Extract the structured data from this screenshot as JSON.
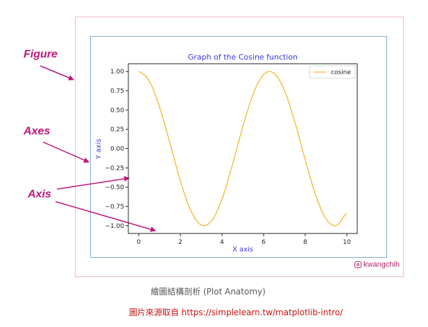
{
  "callouts": {
    "figure": "Figure",
    "axes": "Axes",
    "axis": "Axis"
  },
  "credit": {
    "icon": "instagram-icon",
    "text": "kwangchih"
  },
  "caption": "繪圖結構剖析 (Plot Anatomy)",
  "source": {
    "prefix": "圖片來源取自 ",
    "url": "https://simplelearn.tw/matplotlib-intro/"
  },
  "colors": {
    "callout": "#c0157a",
    "figure_frame": "#f2b7c4",
    "axes_frame": "#7fa9d6",
    "line": "#f5b62a",
    "labels": "#3a3adf",
    "source": "#cc1111"
  },
  "chart_data": {
    "type": "line",
    "title": "Graph of the Cosine function",
    "xlabel": "X axis",
    "ylabel": "Y axis",
    "xlim": [
      -0.5,
      10.5
    ],
    "ylim": [
      -1.1,
      1.1
    ],
    "xticks": [
      0,
      2,
      4,
      6,
      8,
      10
    ],
    "yticks": [
      1.0,
      0.75,
      0.5,
      0.25,
      0.0,
      -0.25,
      -0.5,
      -0.75,
      -1.0
    ],
    "ytick_labels": [
      "1.00",
      "0.75",
      "0.50",
      "0.25",
      "0.00",
      "−0.25",
      "−0.50",
      "−0.75",
      "−1.00"
    ],
    "legend_position": "top-right",
    "grid": false,
    "series": [
      {
        "name": "cosine",
        "color": "#f5b62a",
        "x": [
          0,
          0.5,
          1,
          1.5,
          2,
          2.5,
          3,
          3.5,
          4,
          4.5,
          5,
          5.5,
          6,
          6.5,
          7,
          7.5,
          8,
          8.5,
          9,
          9.5,
          10
        ],
        "y": [
          1.0,
          0.878,
          0.54,
          0.071,
          -0.416,
          -0.801,
          -0.99,
          -0.936,
          -0.654,
          -0.211,
          0.284,
          0.709,
          0.96,
          0.977,
          0.754,
          0.347,
          -0.146,
          -0.602,
          -0.911,
          -0.997,
          -0.839
        ]
      }
    ]
  }
}
